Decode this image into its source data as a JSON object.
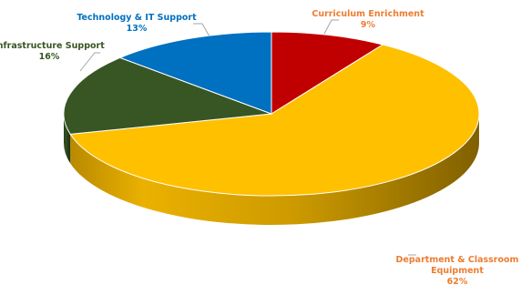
{
  "chart_data": {
    "type": "pie",
    "style": "3d",
    "slices": [
      {
        "name": "Curriculum Enrichment",
        "value": 9,
        "label": "9%",
        "color": "#C00000"
      },
      {
        "name": "Department & Classroom Equipment",
        "value": 62,
        "label": "62%",
        "color": "#FFC000"
      },
      {
        "name": "Infrastructure Support",
        "value": 16,
        "label": "16%",
        "color": "#375623"
      },
      {
        "name": "Technology & IT Support",
        "value": 13,
        "label": "13%",
        "color": "#0070C0"
      }
    ],
    "label_colors": {
      "Curriculum Enrichment": "#ED7D31",
      "Department & Classroom Equipment": "#ED7D31",
      "Infrastructure Support": "#375623",
      "Technology & IT Support": "#0070C0"
    },
    "label_lines": {
      "Curriculum Enrichment": [
        "Curriculum Enrichment"
      ],
      "Department & Classroom Equipment": [
        "Department & Classroom",
        "Equipment"
      ],
      "Infrastructure Support": [
        "Infrastructure Support"
      ],
      "Technology & IT Support": [
        "Technology & IT Support"
      ]
    },
    "legend": "none",
    "grid": false
  }
}
